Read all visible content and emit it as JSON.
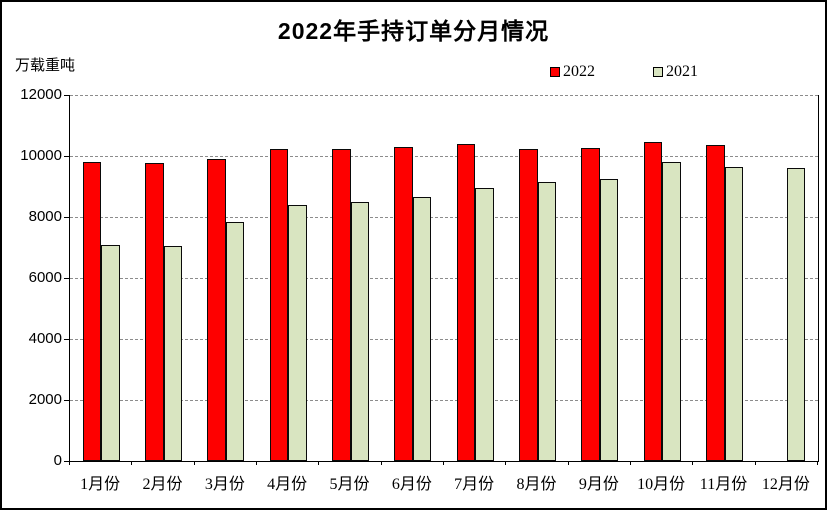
{
  "title": "2022年手持订单分月情况",
  "unit_label": "万载重吨",
  "chart_data": {
    "type": "bar",
    "title": "2022年手持订单分月情况",
    "ylabel": "万载重吨",
    "categories": [
      "1月份",
      "2月份",
      "3月份",
      "4月份",
      "5月份",
      "6月份",
      "7月份",
      "8月份",
      "9月份",
      "10月份",
      "11月份",
      "12月份"
    ],
    "series": [
      {
        "name": "2022",
        "color": "#fe0000",
        "values": [
          9800,
          9770,
          9890,
          10240,
          10220,
          10290,
          10380,
          10220,
          10270,
          10460,
          10370,
          null
        ]
      },
      {
        "name": "2021",
        "color": "#d9e5c1",
        "values": [
          7080,
          7040,
          7830,
          8410,
          8480,
          8650,
          8950,
          9150,
          9240,
          9800,
          9650,
          9600
        ]
      }
    ],
    "ylim": [
      0,
      12000
    ],
    "yticks": [
      0,
      2000,
      4000,
      6000,
      8000,
      10000,
      12000
    ],
    "grid": "horizontal-dashed",
    "legend_position": "top-right"
  }
}
